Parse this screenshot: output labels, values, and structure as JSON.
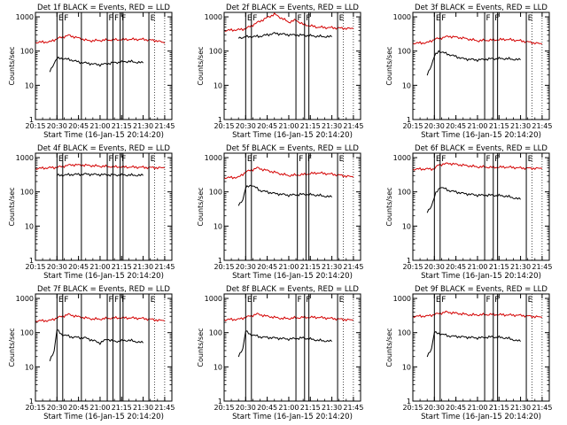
{
  "colors": {
    "events": "#000000",
    "lld": "#d40000",
    "axis": "#000000"
  },
  "chart_data": [
    {
      "type": "line",
      "title": "Det 1f BLACK = Events, RED = LLD",
      "xlabel": "Start Time (16-Jan-15 20:14:20)",
      "ylabel": "Counts/sec",
      "ylog": true,
      "ylim": [
        1,
        1000
      ],
      "xlim": [
        "20:15",
        "21:50"
      ],
      "xticks": [
        "20:15",
        "20:30",
        "20:45",
        "21:00",
        "21:15",
        "21:30",
        "21:45"
      ],
      "yticks": [
        "1",
        "10",
        "100",
        "1000"
      ],
      "grid": "dotted vertical lines after 21:30",
      "markers": [
        {
          "time": "20:30",
          "label": "E"
        },
        {
          "time": "20:34",
          "label": "F"
        },
        {
          "time": "20:47"
        },
        {
          "time": "21:05",
          "label": "F"
        },
        {
          "time": "21:09",
          "label": "F"
        },
        {
          "time": "21:14",
          "label": "F"
        },
        {
          "time": "21:16"
        },
        {
          "time": "21:34",
          "label": "E"
        }
      ],
      "series": [
        {
          "name": "LLD",
          "x": [
            "20:15",
            "20:25",
            "20:30",
            "20:38",
            "20:45",
            "20:52",
            "21:00",
            "21:10",
            "21:20",
            "21:30",
            "21:40",
            "21:45"
          ],
          "values": [
            180,
            185,
            230,
            290,
            240,
            200,
            205,
            215,
            220,
            220,
            200,
            170
          ]
        },
        {
          "name": "Events",
          "x": [
            "20:25",
            "20:28",
            "20:30",
            "20:33",
            "20:40",
            "20:45",
            "20:55",
            "21:00",
            "21:10",
            "21:20",
            "21:30"
          ],
          "values": [
            25,
            45,
            60,
            62,
            55,
            48,
            42,
            40,
            46,
            50,
            45
          ]
        }
      ]
    },
    {
      "type": "line",
      "title": "Det 2f BLACK = Events, RED = LLD",
      "xlabel": "Start Time (16-Jan-15 20:14:20)",
      "ylabel": "Counts/sec",
      "ylog": true,
      "ylim": [
        1,
        1000
      ],
      "xlim": [
        "20:15",
        "21:50"
      ],
      "xticks": [
        "20:15",
        "20:30",
        "20:45",
        "21:00",
        "21:15",
        "21:30",
        "21:45"
      ],
      "yticks": [
        "1",
        "10",
        "100",
        "1000"
      ],
      "markers": [
        {
          "time": "20:30",
          "label": "E"
        },
        {
          "time": "20:34",
          "label": "F"
        },
        {
          "time": "21:05",
          "label": "F"
        },
        {
          "time": "21:11",
          "label": "F"
        },
        {
          "time": "21:14"
        },
        {
          "time": "21:34",
          "label": "E"
        }
      ],
      "series": [
        {
          "name": "LLD",
          "x": [
            "20:15",
            "20:25",
            "20:30",
            "20:40",
            "20:50",
            "21:00",
            "21:05",
            "21:10",
            "21:20",
            "21:30",
            "21:45"
          ],
          "values": [
            400,
            420,
            450,
            750,
            1200,
            700,
            800,
            600,
            500,
            480,
            450
          ]
        },
        {
          "name": "Events",
          "x": [
            "20:25",
            "20:30",
            "20:40",
            "20:50",
            "21:00",
            "21:10",
            "21:20",
            "21:30"
          ],
          "values": [
            240,
            260,
            270,
            330,
            300,
            290,
            270,
            260
          ]
        }
      ]
    },
    {
      "type": "line",
      "title": "Det 3f BLACK = Events, RED = LLD",
      "xlabel": "Start Time (16-Jan-15 20:14:20)",
      "ylabel": "Counts/sec",
      "ylog": true,
      "ylim": [
        1,
        1000
      ],
      "xlim": [
        "20:15",
        "21:50"
      ],
      "xticks": [
        "20:15",
        "20:30",
        "20:45",
        "21:00",
        "21:15",
        "21:30",
        "21:45"
      ],
      "yticks": [
        "1",
        "10",
        "100",
        "1000"
      ],
      "markers": [
        {
          "time": "20:30",
          "label": "E"
        },
        {
          "time": "20:34",
          "label": "F"
        },
        {
          "time": "21:05",
          "label": "F"
        },
        {
          "time": "21:11",
          "label": "F"
        },
        {
          "time": "21:14"
        },
        {
          "time": "21:34",
          "label": "E"
        }
      ],
      "series": [
        {
          "name": "LLD",
          "x": [
            "20:15",
            "20:25",
            "20:30",
            "20:40",
            "20:50",
            "21:00",
            "21:10",
            "21:20",
            "21:30",
            "21:45"
          ],
          "values": [
            170,
            175,
            220,
            270,
            240,
            200,
            210,
            220,
            200,
            160
          ]
        },
        {
          "name": "Events",
          "x": [
            "20:25",
            "20:28",
            "20:30",
            "20:33",
            "20:40",
            "20:50",
            "21:00",
            "21:10",
            "21:20",
            "21:30"
          ],
          "values": [
            20,
            40,
            70,
            100,
            80,
            60,
            55,
            60,
            60,
            55
          ]
        }
      ]
    },
    {
      "type": "line",
      "title": "Det 4f BLACK = Events, RED = LLD",
      "xlabel": "Start Time (16-Jan-15 20:14:20)",
      "ylabel": "Counts/sec",
      "ylog": true,
      "ylim": [
        1,
        1000
      ],
      "xlim": [
        "20:15",
        "21:50"
      ],
      "xticks": [
        "20:15",
        "20:30",
        "20:45",
        "21:00",
        "21:15",
        "21:30",
        "21:45"
      ],
      "yticks": [
        "1",
        "10",
        "100",
        "1000"
      ],
      "markers": [
        {
          "time": "20:30",
          "label": "E"
        },
        {
          "time": "20:34",
          "label": "F"
        },
        {
          "time": "20:47"
        },
        {
          "time": "21:05",
          "label": "F"
        },
        {
          "time": "21:09",
          "label": "F"
        },
        {
          "time": "21:14",
          "label": "F"
        },
        {
          "time": "21:16"
        },
        {
          "time": "21:34",
          "label": "E"
        }
      ],
      "series": [
        {
          "name": "LLD",
          "x": [
            "20:15",
            "20:30",
            "20:40",
            "20:50",
            "21:00",
            "21:10",
            "21:20",
            "21:30",
            "21:45"
          ],
          "values": [
            480,
            520,
            620,
            600,
            560,
            540,
            530,
            520,
            500
          ]
        },
        {
          "name": "Events",
          "x": [
            "20:30",
            "20:40",
            "20:50",
            "21:00",
            "21:10",
            "21:20",
            "21:30"
          ],
          "values": [
            300,
            320,
            330,
            320,
            310,
            310,
            300
          ]
        }
      ]
    },
    {
      "type": "line",
      "title": "Det 5f BLACK = Events, RED = LLD",
      "xlabel": "Start Time (16-Jan-15 20:14:20)",
      "ylabel": "Counts/sec",
      "ylog": true,
      "ylim": [
        1,
        1000
      ],
      "xlim": [
        "20:15",
        "21:50"
      ],
      "xticks": [
        "20:15",
        "20:30",
        "20:45",
        "21:00",
        "21:15",
        "21:30",
        "21:45"
      ],
      "yticks": [
        "1",
        "10",
        "100",
        "1000"
      ],
      "markers": [
        {
          "time": "20:30",
          "label": "E"
        },
        {
          "time": "20:34",
          "label": "F"
        },
        {
          "time": "21:06",
          "label": "F"
        },
        {
          "time": "21:12",
          "label": "F"
        },
        {
          "time": "21:14"
        },
        {
          "time": "21:34",
          "label": "E"
        }
      ],
      "series": [
        {
          "name": "LLD",
          "x": [
            "20:15",
            "20:25",
            "20:30",
            "20:38",
            "20:45",
            "20:55",
            "21:00",
            "21:10",
            "21:20",
            "21:30",
            "21:45"
          ],
          "values": [
            260,
            265,
            380,
            500,
            420,
            330,
            300,
            320,
            360,
            330,
            270
          ]
        },
        {
          "name": "Events",
          "x": [
            "20:25",
            "20:28",
            "20:30",
            "20:34",
            "20:40",
            "20:50",
            "21:00",
            "21:10",
            "21:20",
            "21:30"
          ],
          "values": [
            40,
            60,
            130,
            160,
            110,
            90,
            80,
            85,
            80,
            70
          ]
        }
      ]
    },
    {
      "type": "line",
      "title": "Det 6f BLACK = Events, RED = LLD",
      "xlabel": "Start Time (16-Jan-15 20:14:20)",
      "ylabel": "Counts/sec",
      "ylog": true,
      "ylim": [
        1,
        1000
      ],
      "xlim": [
        "20:15",
        "21:50"
      ],
      "xticks": [
        "20:15",
        "20:30",
        "20:45",
        "21:00",
        "21:15",
        "21:30",
        "21:45"
      ],
      "yticks": [
        "1",
        "10",
        "100",
        "1000"
      ],
      "markers": [
        {
          "time": "20:30",
          "label": "E"
        },
        {
          "time": "20:34",
          "label": "F"
        },
        {
          "time": "21:05",
          "label": "F"
        },
        {
          "time": "21:11",
          "label": "F"
        },
        {
          "time": "21:14"
        },
        {
          "time": "21:34",
          "label": "E"
        }
      ],
      "series": [
        {
          "name": "LLD",
          "x": [
            "20:15",
            "20:30",
            "20:33",
            "20:40",
            "20:50",
            "21:00",
            "21:10",
            "21:20",
            "21:30",
            "21:45"
          ],
          "values": [
            460,
            470,
            620,
            680,
            600,
            540,
            520,
            530,
            500,
            480
          ]
        },
        {
          "name": "Events",
          "x": [
            "20:25",
            "20:28",
            "20:31",
            "20:34",
            "20:40",
            "20:50",
            "21:00",
            "21:10",
            "21:20",
            "21:30"
          ],
          "values": [
            25,
            40,
            90,
            140,
            110,
            90,
            80,
            80,
            75,
            60
          ]
        }
      ]
    },
    {
      "type": "line",
      "title": "Det 7f BLACK = Events, RED = LLD",
      "xlabel": "Start Time (16-Jan-15 20:14:20)",
      "ylabel": "Counts/sec",
      "ylog": true,
      "ylim": [
        1,
        1000
      ],
      "xlim": [
        "20:15",
        "21:50"
      ],
      "xticks": [
        "20:15",
        "20:30",
        "20:45",
        "21:00",
        "21:15",
        "21:30",
        "21:45"
      ],
      "yticks": [
        "1",
        "10",
        "100",
        "1000"
      ],
      "markers": [
        {
          "time": "20:30",
          "label": "E"
        },
        {
          "time": "20:34",
          "label": "F"
        },
        {
          "time": "20:47"
        },
        {
          "time": "21:05",
          "label": "F"
        },
        {
          "time": "21:09",
          "label": "F"
        },
        {
          "time": "21:14",
          "label": "F"
        },
        {
          "time": "21:16"
        },
        {
          "time": "21:34",
          "label": "E"
        }
      ],
      "series": [
        {
          "name": "LLD",
          "x": [
            "20:15",
            "20:25",
            "20:30",
            "20:38",
            "20:45",
            "20:55",
            "21:00",
            "21:10",
            "21:20",
            "21:30",
            "21:45"
          ],
          "values": [
            220,
            225,
            270,
            340,
            290,
            250,
            250,
            270,
            270,
            260,
            220
          ]
        },
        {
          "name": "Events",
          "x": [
            "20:25",
            "20:28",
            "20:30",
            "20:33",
            "20:40",
            "20:50",
            "21:00",
            "21:05",
            "21:10",
            "21:20",
            "21:30"
          ],
          "values": [
            15,
            30,
            120,
            90,
            75,
            70,
            50,
            65,
            55,
            60,
            50
          ]
        }
      ]
    },
    {
      "type": "line",
      "title": "Det 8f BLACK = Events, RED = LLD",
      "xlabel": "Start Time (16-Jan-15 20:14:20)",
      "ylabel": "Counts/sec",
      "ylog": true,
      "ylim": [
        1,
        1000
      ],
      "xlim": [
        "20:15",
        "21:50"
      ],
      "xticks": [
        "20:15",
        "20:30",
        "20:45",
        "21:00",
        "21:15",
        "21:30",
        "21:45"
      ],
      "yticks": [
        "1",
        "10",
        "100",
        "1000"
      ],
      "markers": [
        {
          "time": "20:30",
          "label": "E"
        },
        {
          "time": "20:34",
          "label": "F"
        },
        {
          "time": "21:05",
          "label": "F"
        },
        {
          "time": "21:11",
          "label": "F"
        },
        {
          "time": "21:14"
        },
        {
          "time": "21:34",
          "label": "E"
        }
      ],
      "series": [
        {
          "name": "LLD",
          "x": [
            "20:15",
            "20:25",
            "20:30",
            "20:38",
            "20:45",
            "20:55",
            "21:00",
            "21:10",
            "21:20",
            "21:30",
            "21:45"
          ],
          "values": [
            240,
            245,
            280,
            350,
            300,
            260,
            260,
            280,
            280,
            260,
            230
          ]
        },
        {
          "name": "Events",
          "x": [
            "20:25",
            "20:28",
            "20:30",
            "20:33",
            "20:40",
            "20:50",
            "21:00",
            "21:10",
            "21:20",
            "21:30"
          ],
          "values": [
            20,
            35,
            110,
            90,
            75,
            70,
            65,
            70,
            60,
            55
          ]
        }
      ]
    },
    {
      "type": "line",
      "title": "Det 9f BLACK = Events, RED = LLD",
      "xlabel": "Start Time (16-Jan-15 20:14:20)",
      "ylabel": "Counts/sec",
      "ylog": true,
      "ylim": [
        1,
        1000
      ],
      "xlim": [
        "20:15",
        "21:50"
      ],
      "xticks": [
        "20:15",
        "20:30",
        "20:45",
        "21:00",
        "21:15",
        "21:30",
        "21:45"
      ],
      "yticks": [
        "1",
        "10",
        "100",
        "1000"
      ],
      "markers": [
        {
          "time": "20:30",
          "label": "E"
        },
        {
          "time": "20:34",
          "label": "F"
        },
        {
          "time": "21:05",
          "label": "F"
        },
        {
          "time": "21:11",
          "label": "F"
        },
        {
          "time": "21:14"
        },
        {
          "time": "21:34",
          "label": "E"
        }
      ],
      "series": [
        {
          "name": "LLD",
          "x": [
            "20:15",
            "20:25",
            "20:30",
            "20:38",
            "20:45",
            "20:55",
            "21:00",
            "21:10",
            "21:20",
            "21:30",
            "21:45"
          ],
          "values": [
            300,
            305,
            340,
            400,
            370,
            330,
            330,
            340,
            330,
            320,
            280
          ]
        },
        {
          "name": "Events",
          "x": [
            "20:25",
            "20:28",
            "20:30",
            "20:33",
            "20:40",
            "20:50",
            "21:00",
            "21:10",
            "21:20",
            "21:30"
          ],
          "values": [
            20,
            35,
            100,
            95,
            80,
            75,
            70,
            75,
            70,
            55
          ]
        }
      ]
    }
  ]
}
